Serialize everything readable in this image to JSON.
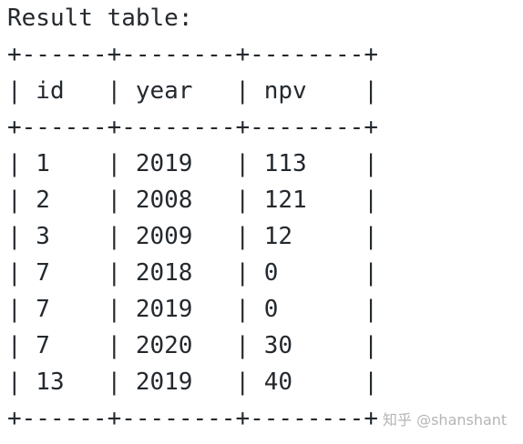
{
  "title": "Result table:",
  "border": "+------+--------+--------+",
  "separator": "|",
  "table": {
    "header": [
      "id",
      "year",
      "npv"
    ],
    "rows": [
      [
        "1",
        "2019",
        "113"
      ],
      [
        "2",
        "2008",
        "121"
      ],
      [
        "3",
        "2009",
        "12"
      ],
      [
        "7",
        "2018",
        "0"
      ],
      [
        "7",
        "2019",
        "0"
      ],
      [
        "7",
        "2020",
        "30"
      ],
      [
        "13",
        "2019",
        "40"
      ]
    ]
  },
  "watermark": "知乎 @shanshant"
}
